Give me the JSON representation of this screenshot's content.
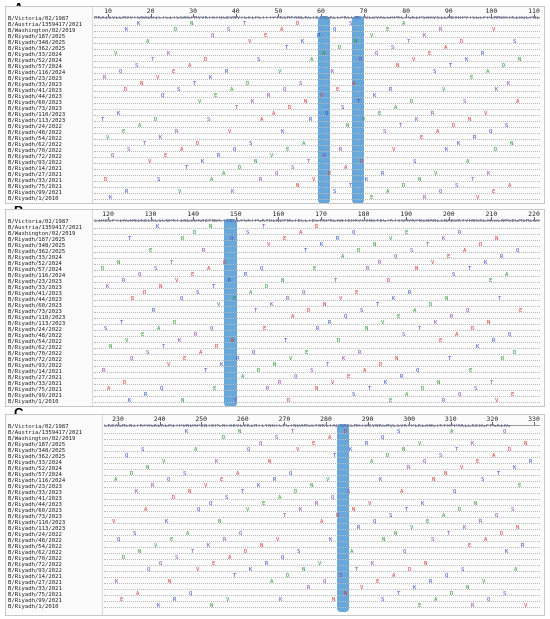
{
  "panels": [
    {
      "label": "A.",
      "ruler": [
        "10",
        "20",
        "30",
        "40",
        "50",
        "60",
        "70",
        "80",
        "90",
        "100",
        "110"
      ],
      "ref_sequence": "MKAIIVLLMVVTSNADRICTGITSSNSPHVVKTATQGEVNVTGVIPLTTTPTKSHFANLKGTETRGKLCPKCLNCTDLDVALGRPKCTGKIPSARVSILHEVRPVTSGCFPIMHDRTKIRQLPNLLRGYEHIRLSTHNVINAENAPGGPYKIGTSGSCPNITNGNGFFATMAWAVPKNDNNKTATNPLTIEVPYICTEGEDQITVWGFHSDNETQMAKLYGDSKPQKFTSSANGVTTHYVSQIGGFPNQTEDGGLPQSGRIVVDYMVQKSGKTGTITYQRGILLPQKVWCASGRSKVIKGSLPLIGEADCLHEKYGGLNKSKPYYTGEHAKAIGNCPIWVKTPLKLANGTKYRPPAKLLKER",
      "sequences": [
        "B/Victoria/02/1987",
        "B/Austria/1359417/2021",
        "B/Washington/02/2019",
        "B/Riyadh/187/2025",
        "B/Riyadh/348/2025",
        "B/Riyadh/362/2025",
        "B/Riyadh/33/2024",
        "B/Riyadh/52/2024",
        "B/Riyadh/57/2024",
        "B/Riyadh/116/2024",
        "B/Riyadh/23/2023",
        "B/Riyadh/33/2023",
        "B/Riyadh/41/2023",
        "B/Riyadh/44/2023",
        "B/Riyadh/60/2023",
        "B/Riyadh/73/2023",
        "B/Riyadh/110/2023",
        "B/Riyadh/113/2023",
        "B/Riyadh/24/2022",
        "B/Riyadh/48/2022",
        "B/Riyadh/54/2022",
        "B/Riyadh/62/2022",
        "B/Riyadh/70/2022",
        "B/Riyadh/72/2022",
        "B/Riyadh/93/2022",
        "B/Riyadh/14/2021",
        "B/Riyadh/27/2021",
        "B/Riyadh/33/2021",
        "B/Riyadh/75/2021",
        "B/Riyadh/99/2021",
        "B/Riyadh/1/2010"
      ]
    },
    {
      "label": "B.",
      "ruler": [
        "120",
        "130",
        "140",
        "150",
        "160",
        "170",
        "180",
        "190",
        "200",
        "210",
        "220"
      ],
      "ref_sequence": "LIREIFTIAGRNIKECKLSCNPKTINLDDRAEFNDCTEECLPGKTPGKYDLNDFNGTECLTEGYKPKLANTERKVCVNSYEGTKTVSMVKPNINANLINAEDKYVRWSKLAKGCNHSEGMSHLGRPSSRLP",
      "sequences": [
        "B/Victoria/02/1987",
        "B/Austria/1359417/2021",
        "B/Washington/02/2019",
        "B/Riyadh/187/2025",
        "B/Riyadh/348/2025",
        "B/Riyadh/362/2025",
        "B/Riyadh/33/2024",
        "B/Riyadh/52/2024",
        "B/Riyadh/57/2024",
        "B/Riyadh/116/2024",
        "B/Riyadh/23/2023",
        "B/Riyadh/33/2023",
        "B/Riyadh/41/2023",
        "B/Riyadh/44/2023",
        "B/Riyadh/60/2023",
        "B/Riyadh/73/2023",
        "B/Riyadh/110/2023",
        "B/Riyadh/113/2023",
        "B/Riyadh/24/2022",
        "B/Riyadh/48/2022",
        "B/Riyadh/54/2022",
        "B/Riyadh/62/2022",
        "B/Riyadh/70/2022",
        "B/Riyadh/72/2022",
        "B/Riyadh/93/2022",
        "B/Riyadh/14/2021",
        "B/Riyadh/27/2021",
        "B/Riyadh/33/2021",
        "B/Riyadh/75/2021",
        "B/Riyadh/99/2021",
        "B/Riyadh/1/2010"
      ]
    },
    {
      "label": "C.",
      "ruler": [
        "230",
        "240",
        "250",
        "260",
        "270",
        "280",
        "290",
        "300",
        "310",
        "320",
        "330"
      ],
      "ref_sequence": "LKEAGHCNITKPAGKDKLMITPDNDAPENTEPCNTAEVLVKIHTIYNRTCFGTNDAMGSYWKGTAPSAELHRTDEVWKGMQLSVKTPLKLANGTKYRPPAKLLKERGFFGAIAG",
      "sequences": [
        "B/Victoria/02/1987",
        "B/Austria/1359417/2021",
        "B/Washington/02/2019",
        "B/Riyadh/187/2025",
        "B/Riyadh/348/2025",
        "B/Riyadh/362/2025",
        "B/Riyadh/33/2024",
        "B/Riyadh/52/2024",
        "B/Riyadh/57/2024",
        "B/Riyadh/116/2024",
        "B/Riyadh/23/2023",
        "B/Riyadh/33/2023",
        "B/Riyadh/41/2023",
        "B/Riyadh/44/2023",
        "B/Riyadh/60/2023",
        "B/Riyadh/73/2023",
        "B/Riyadh/110/2023",
        "B/Riyadh/113/2023",
        "B/Riyadh/24/2022",
        "B/Riyadh/48/2022",
        "B/Riyadh/54/2022",
        "B/Riyadh/62/2022",
        "B/Riyadh/70/2022",
        "B/Riyadh/72/2022",
        "B/Riyadh/93/2022",
        "B/Riyadh/14/2021",
        "B/Riyadh/27/2021",
        "B/Riyadh/33/2021",
        "B/Riyadh/75/2021",
        "B/Riyadh/99/2021",
        "B/Riyadh/1/2010"
      ]
    }
  ],
  "colors": {
    "highlight": "#5aa0d6",
    "residue_red": "#d83a3a",
    "residue_blue": "#3550c8",
    "residue_green": "#2f9a3a",
    "residue_purple": "#8a44b8"
  }
}
